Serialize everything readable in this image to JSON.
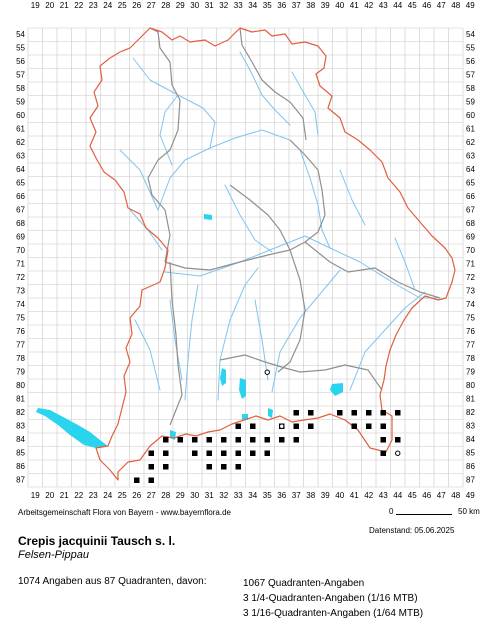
{
  "map": {
    "x_labels": [
      "19",
      "20",
      "21",
      "22",
      "23",
      "24",
      "25",
      "26",
      "27",
      "28",
      "29",
      "30",
      "31",
      "32",
      "33",
      "34",
      "35",
      "36",
      "37",
      "38",
      "39",
      "40",
      "41",
      "42",
      "43",
      "44",
      "45",
      "46",
      "47",
      "48",
      "49"
    ],
    "y_labels": [
      "54",
      "55",
      "56",
      "57",
      "58",
      "59",
      "60",
      "61",
      "62",
      "63",
      "64",
      "65",
      "66",
      "67",
      "68",
      "69",
      "70",
      "71",
      "72",
      "73",
      "74",
      "75",
      "76",
      "77",
      "78",
      "79",
      "80",
      "81",
      "82",
      "83",
      "84",
      "85",
      "86",
      "87"
    ],
    "colors": {
      "grid": "#c8c8c8",
      "border_state": "#e06040",
      "border_region": "#909090",
      "river": "#80c4ee",
      "lake": "#2ad4ee",
      "record": "#000000"
    },
    "records": [
      [
        41,
        82
      ],
      [
        42,
        82
      ],
      [
        43,
        82
      ],
      [
        44,
        82
      ],
      [
        40,
        82
      ],
      [
        37,
        82
      ],
      [
        38,
        82
      ],
      [
        33,
        83
      ],
      [
        34,
        83
      ],
      [
        37,
        83
      ],
      [
        38,
        83
      ],
      [
        36,
        83
      ],
      [
        42,
        83
      ],
      [
        43,
        83
      ],
      [
        41,
        83
      ],
      [
        28,
        84
      ],
      [
        29,
        84
      ],
      [
        30,
        84
      ],
      [
        31,
        84
      ],
      [
        32,
        84
      ],
      [
        33,
        84
      ],
      [
        34,
        84
      ],
      [
        35,
        84
      ],
      [
        36,
        84
      ],
      [
        37,
        84
      ],
      [
        43,
        84
      ],
      [
        44,
        84
      ],
      [
        27,
        85
      ],
      [
        28,
        85
      ],
      [
        30,
        85
      ],
      [
        31,
        85
      ],
      [
        32,
        85
      ],
      [
        33,
        85
      ],
      [
        34,
        85
      ],
      [
        35,
        85
      ],
      [
        43,
        85
      ],
      [
        27,
        86
      ],
      [
        28,
        86
      ],
      [
        31,
        86
      ],
      [
        32,
        86
      ],
      [
        33,
        86
      ],
      [
        26,
        87
      ],
      [
        27,
        87
      ]
    ],
    "open_records": [
      [
        35,
        79
      ],
      [
        36,
        83
      ],
      [
        44,
        85
      ]
    ]
  },
  "credit": "Arbeitsgemeinschaft Flora von Bayern - www.bayernflora.de",
  "scale": {
    "start": "0",
    "end": "50 km"
  },
  "datenstand": "Datenstand: 05.06.2025",
  "taxon": "Crepis jacquinii Tausch s. l.",
  "common_name": "Felsen-Pippau",
  "summary": "1074 Angaben aus 87 Quadranten, davon:",
  "stats": [
    "1067 Quadranten-Angaben",
    "3 1/4-Quadranten-Angaben (1/16 MTB)",
    "3 1/16-Quadranten-Angaben (1/64 MTB)"
  ]
}
